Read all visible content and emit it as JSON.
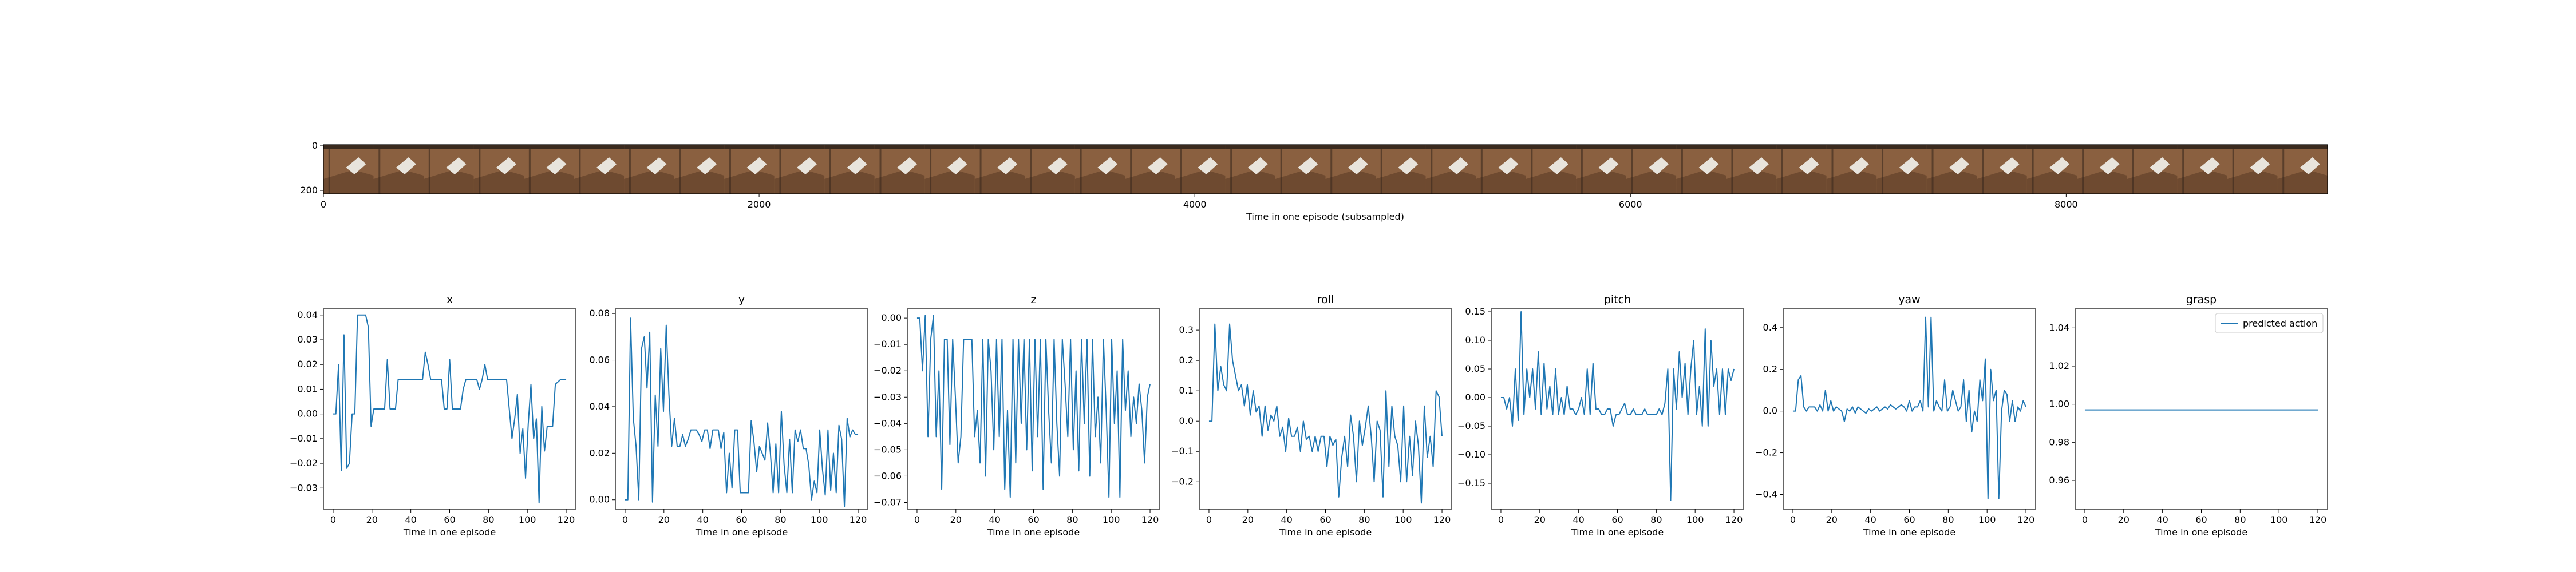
{
  "strip": {
    "xlabel": "Time in one episode (subsampled)",
    "xticks": [
      0,
      2000,
      4000,
      6000,
      8000
    ],
    "yticks": [
      0,
      200
    ],
    "xlim": [
      0,
      9200
    ],
    "frame_count": 40,
    "image_description_colors": {
      "wood": "#8a6040",
      "dark": "#3a2a1e",
      "light": "#e8e4dc"
    }
  },
  "chart_data": [
    {
      "type": "line",
      "title": "x",
      "xlabel": "Time in one episode",
      "xlim": [
        -5,
        125
      ],
      "ylim": [
        -0.0385,
        0.0425
      ],
      "xticks": [
        0,
        20,
        40,
        60,
        80,
        100,
        120
      ],
      "yticks": [
        -0.03,
        -0.02,
        -0.01,
        0.0,
        0.01,
        0.02,
        0.03,
        0.04
      ],
      "ytick_labels": [
        "−0.03",
        "−0.02",
        "−0.01",
        "0.00",
        "0.01",
        "0.02",
        "0.03",
        "0.04"
      ],
      "y": [
        0,
        0,
        0.02,
        -0.023,
        0.032,
        -0.022,
        -0.02,
        0,
        0,
        0.04,
        0.04,
        0.04,
        0.04,
        0.035,
        -0.005,
        0.002,
        0.002,
        0.002,
        0.002,
        0.002,
        0.022,
        0.002,
        0.002,
        0.002,
        0.014,
        0.014,
        0.014,
        0.014,
        0.014,
        0.014,
        0.014,
        0.014,
        0.014,
        0.014,
        0.025,
        0.02,
        0.014,
        0.014,
        0.014,
        0.014,
        0.014,
        0.002,
        0.002,
        0.022,
        0.002,
        0.002,
        0.002,
        0.002,
        0.01,
        0.014,
        0.014,
        0.014,
        0.014,
        0.014,
        0.01,
        0.014,
        0.02,
        0.014,
        0.014,
        0.014,
        0.014,
        0.014,
        0.014,
        0.014,
        0.014,
        0.002,
        -0.01,
        -0.002,
        0.008,
        -0.016,
        -0.006,
        -0.026,
        -0.004,
        0.012,
        -0.01,
        -0.002,
        -0.036,
        0.003,
        -0.015,
        -0.005,
        -0.005,
        -0.005,
        0.012,
        0.013,
        0.014,
        0.014,
        0.014
      ]
    },
    {
      "type": "line",
      "title": "y",
      "xlabel": "Time in one episode",
      "xlim": [
        -5,
        125
      ],
      "ylim": [
        -0.004,
        0.082
      ],
      "xticks": [
        0,
        20,
        40,
        60,
        80,
        100,
        120
      ],
      "yticks": [
        0.0,
        0.02,
        0.04,
        0.06,
        0.08
      ],
      "ytick_labels": [
        "0.00",
        "0.02",
        "0.04",
        "0.06",
        "0.08"
      ],
      "y": [
        0,
        0,
        0.078,
        0.035,
        0.023,
        0,
        0.065,
        0.07,
        0.048,
        0.072,
        -0.001,
        0.045,
        0.023,
        0.065,
        0.038,
        0.075,
        0.045,
        0.023,
        0.035,
        0.023,
        0.023,
        0.028,
        0.023,
        0.026,
        0.03,
        0.03,
        0.03,
        0.028,
        0.025,
        0.03,
        0.03,
        0.022,
        0.03,
        0.03,
        0.03,
        0.022,
        0.029,
        0.003,
        0.02,
        0.005,
        0.03,
        0.03,
        0.003,
        0.003,
        0.003,
        0.003,
        0.034,
        0.025,
        0.012,
        0.023,
        0.02,
        0.017,
        0.033,
        0.02,
        0.003,
        0.024,
        0.003,
        0.038,
        0.015,
        0.003,
        0.026,
        0.003,
        0.03,
        0.025,
        0.03,
        0.022,
        0.022,
        0.015,
        0,
        0.008,
        0.003,
        0.03,
        0.013,
        0.002,
        0.03,
        0.004,
        0.02,
        0.003,
        0.032,
        0.026,
        -0.003,
        0.035,
        0.027,
        0.03,
        0.028,
        0.028
      ]
    },
    {
      "type": "line",
      "title": "z",
      "xlabel": "Time in one episode",
      "xlim": [
        -5,
        125
      ],
      "ylim": [
        -0.0725,
        0.0035
      ],
      "xticks": [
        0,
        20,
        40,
        60,
        80,
        100,
        120
      ],
      "yticks": [
        -0.07,
        -0.06,
        -0.05,
        -0.04,
        -0.03,
        -0.02,
        -0.01,
        0.0
      ],
      "ytick_labels": [
        "−0.07",
        "−0.06",
        "−0.05",
        "−0.04",
        "−0.03",
        "−0.02",
        "−0.01",
        "0.00"
      ],
      "y": [
        0,
        0,
        -0.02,
        0.001,
        -0.045,
        -0.008,
        0.001,
        -0.045,
        -0.02,
        -0.065,
        -0.008,
        -0.008,
        -0.048,
        -0.008,
        -0.03,
        -0.055,
        -0.045,
        -0.008,
        -0.008,
        -0.008,
        -0.008,
        -0.045,
        -0.035,
        -0.055,
        -0.008,
        -0.06,
        -0.008,
        -0.02,
        -0.05,
        -0.008,
        -0.045,
        -0.008,
        -0.065,
        -0.035,
        -0.068,
        -0.008,
        -0.055,
        -0.008,
        -0.04,
        -0.008,
        -0.05,
        -0.008,
        -0.058,
        -0.008,
        -0.045,
        -0.008,
        -0.065,
        -0.008,
        -0.035,
        -0.055,
        -0.008,
        -0.04,
        -0.06,
        -0.008,
        -0.025,
        -0.045,
        -0.008,
        -0.05,
        -0.02,
        -0.058,
        -0.008,
        -0.04,
        -0.008,
        -0.06,
        -0.008,
        -0.045,
        -0.03,
        -0.055,
        -0.008,
        -0.035,
        -0.068,
        -0.008,
        -0.04,
        -0.02,
        -0.068,
        -0.008,
        -0.035,
        -0.02,
        -0.045,
        -0.03,
        -0.04,
        -0.025,
        -0.035,
        -0.055,
        -0.03,
        -0.025
      ]
    },
    {
      "type": "line",
      "title": "roll",
      "xlabel": "Time in one episode",
      "xlim": [
        -5,
        125
      ],
      "ylim": [
        -0.29,
        0.37
      ],
      "xticks": [
        0,
        20,
        40,
        60,
        80,
        100,
        120
      ],
      "yticks": [
        -0.2,
        -0.1,
        0.0,
        0.1,
        0.2,
        0.3
      ],
      "ytick_labels": [
        "−0.2",
        "−0.1",
        "0.0",
        "0.1",
        "0.2",
        "0.3"
      ],
      "y": [
        0,
        0,
        0.32,
        0.1,
        0.18,
        0.12,
        0.1,
        0.32,
        0.2,
        0.15,
        0.1,
        0.12,
        0.05,
        0.12,
        0.02,
        0.1,
        0.03,
        0.05,
        -0.05,
        0.05,
        -0.03,
        0.02,
        0,
        0.05,
        -0.05,
        -0.02,
        -0.1,
        0.01,
        -0.05,
        -0.05,
        -0.02,
        -0.1,
        0,
        -0.06,
        -0.05,
        -0.1,
        -0.05,
        -0.1,
        -0.05,
        -0.05,
        -0.15,
        -0.05,
        -0.08,
        -0.06,
        -0.25,
        -0.12,
        -0.05,
        -0.15,
        0.02,
        -0.05,
        -0.2,
        0,
        -0.08,
        -0.02,
        0.05,
        -0.05,
        -0.2,
        0,
        -0.03,
        -0.25,
        0.1,
        -0.15,
        0.05,
        -0.05,
        -0.08,
        -0.2,
        0.05,
        -0.2,
        -0.05,
        -0.18,
        0,
        -0.08,
        -0.27,
        0.05,
        -0.12,
        -0.05,
        -0.15,
        0.1,
        0.08,
        -0.05
      ]
    },
    {
      "type": "line",
      "title": "pitch",
      "xlabel": "Time in one episode",
      "xlim": [
        -5,
        125
      ],
      "ylim": [
        -0.195,
        0.155
      ],
      "xticks": [
        0,
        20,
        40,
        60,
        80,
        100,
        120
      ],
      "yticks": [
        -0.15,
        -0.1,
        -0.05,
        0.0,
        0.05,
        0.1,
        0.15
      ],
      "ytick_labels": [
        "−0.15",
        "−0.10",
        "−0.05",
        "0.00",
        "0.05",
        "0.10",
        "0.15"
      ],
      "y": [
        0,
        0,
        -0.02,
        0,
        -0.05,
        0.05,
        -0.04,
        0.15,
        -0.03,
        0.05,
        0,
        0.05,
        -0.02,
        0.08,
        -0.03,
        0.06,
        -0.02,
        0.02,
        -0.03,
        0.05,
        -0.03,
        0,
        -0.03,
        0.02,
        -0.02,
        -0.02,
        -0.03,
        -0.02,
        0,
        -0.03,
        0.05,
        -0.03,
        0.06,
        -0.02,
        -0.02,
        -0.03,
        -0.03,
        -0.02,
        -0.02,
        -0.05,
        -0.03,
        -0.03,
        -0.02,
        -0.01,
        -0.03,
        -0.03,
        -0.02,
        -0.03,
        -0.03,
        -0.03,
        -0.02,
        -0.03,
        -0.03,
        -0.03,
        -0.03,
        -0.02,
        -0.03,
        -0.01,
        0.05,
        -0.18,
        0.05,
        -0.02,
        0.08,
        0,
        0.06,
        -0.03,
        0.05,
        0.1,
        -0.03,
        0.02,
        -0.05,
        0.12,
        -0.05,
        0.1,
        0.02,
        0.05,
        -0.03,
        0.05,
        -0.03,
        0.05,
        0.03,
        0.05
      ]
    },
    {
      "type": "line",
      "title": "yaw",
      "xlabel": "Time in one episode",
      "xlim": [
        -5,
        125
      ],
      "ylim": [
        -0.47,
        0.49
      ],
      "xticks": [
        0,
        20,
        40,
        60,
        80,
        100,
        120
      ],
      "yticks": [
        -0.4,
        -0.2,
        0.0,
        0.2,
        0.4
      ],
      "ytick_labels": [
        "−0.4",
        "−0.2",
        "0.0",
        "0.2",
        "0.4"
      ],
      "y": [
        0,
        0,
        0.15,
        0.17,
        0.02,
        0,
        0.02,
        0.02,
        0.02,
        0,
        0.03,
        0,
        0.1,
        0,
        0.05,
        0,
        0.02,
        0.01,
        0,
        -0.05,
        0.01,
        0,
        0.02,
        -0.01,
        0.02,
        0.01,
        0,
        -0.01,
        0.01,
        0,
        0.01,
        0.02,
        0,
        0.01,
        0.02,
        0.01,
        0.03,
        0.02,
        0.01,
        0.02,
        0.03,
        0.02,
        0,
        0.05,
        0,
        0.02,
        0.02,
        0.05,
        0,
        0.45,
        0.02,
        0.45,
        0,
        0.05,
        0.02,
        0,
        0.15,
        0,
        0.02,
        0.1,
        0.05,
        0,
        0.02,
        0.15,
        -0.05,
        0.1,
        -0.1,
        0,
        -0.05,
        0.15,
        0.05,
        0.25,
        -0.42,
        0.2,
        0.05,
        0.1,
        -0.42,
        0,
        0.1,
        0.08,
        -0.05,
        0.05,
        -0.05,
        0.02,
        0,
        0.05,
        0.02
      ]
    },
    {
      "type": "line",
      "title": "grasp",
      "xlabel": "Time in one episode",
      "xlim": [
        -5,
        125
      ],
      "ylim": [
        0.945,
        1.05
      ],
      "xticks": [
        0,
        20,
        40,
        60,
        80,
        100,
        120
      ],
      "yticks": [
        0.96,
        0.98,
        1.0,
        1.02,
        1.04
      ],
      "ytick_labels": [
        "0.96",
        "0.98",
        "1.00",
        "1.02",
        "1.04"
      ],
      "legend": "predicted action",
      "legend_position": "top-right",
      "y": [
        0.997,
        0.997
      ]
    }
  ],
  "series_color": "#1f77b4"
}
